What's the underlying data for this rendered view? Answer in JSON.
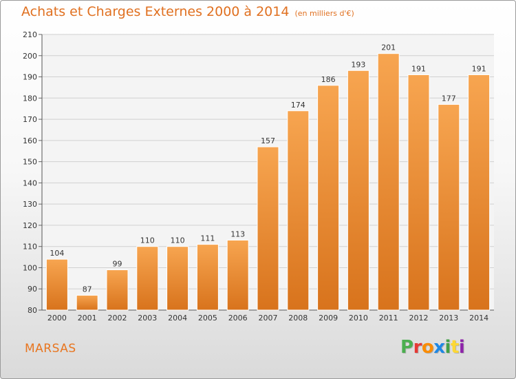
{
  "header": {
    "title": "Achats et Charges Externes 2000 à 2014",
    "subtitle": "(en milliers d'€)"
  },
  "footer": {
    "commune": "MARSAS",
    "logo_text": "Proxiti"
  },
  "colors": {
    "title": "#e07020",
    "bar_light": "#f7a550",
    "bar_dark": "#d8731c",
    "logo": [
      "#4caf50",
      "#e53935",
      "#fb8c00",
      "#1e88e5",
      "#43a047",
      "#fdd835",
      "#8e24aa"
    ]
  },
  "chart_data": {
    "type": "bar",
    "categories": [
      "2000",
      "2001",
      "2002",
      "2003",
      "2004",
      "2005",
      "2006",
      "2007",
      "2008",
      "2009",
      "2010",
      "2011",
      "2012",
      "2013",
      "2014"
    ],
    "values": [
      104,
      87,
      99,
      110,
      110,
      111,
      113,
      157,
      174,
      186,
      193,
      201,
      191,
      177,
      191
    ],
    "ylim": [
      80,
      210
    ],
    "yticks": [
      80,
      90,
      100,
      110,
      120,
      130,
      140,
      150,
      160,
      170,
      180,
      190,
      200,
      210
    ],
    "grid": true,
    "data_labels": true
  }
}
